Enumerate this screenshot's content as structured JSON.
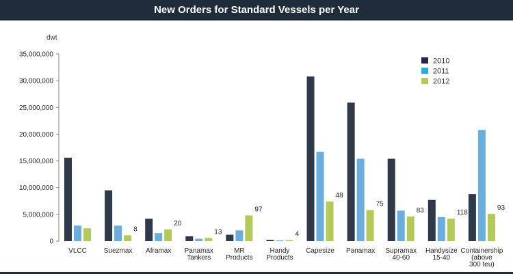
{
  "chart_data": {
    "type": "bar",
    "title": "New Orders for Standard Vessels per Year",
    "ylabel": "dwt",
    "ylim": [
      0,
      35000000
    ],
    "yticks": [
      "35,000,000",
      "30,000,000",
      "25,000,000",
      "20,000,000",
      "15,000,000",
      "10,000,000",
      "5,000,000",
      "0"
    ],
    "ytick_values": [
      35000000,
      30000000,
      25000000,
      20000000,
      15000000,
      10000000,
      5000000,
      0
    ],
    "categories": [
      [
        "VLCC"
      ],
      [
        "Suezmax"
      ],
      [
        "Aframax"
      ],
      [
        "Panamax",
        "Tankers"
      ],
      [
        "MR",
        "Products"
      ],
      [
        "Handy",
        "Products"
      ],
      [
        "Capesize"
      ],
      [
        "Panamax"
      ],
      [
        "Supramax",
        "40-60"
      ],
      [
        "Handysize",
        "15-40"
      ],
      [
        "Containership",
        "(above",
        "300 teu)"
      ]
    ],
    "series": [
      {
        "name": "2010",
        "color": "#2e3a4a",
        "values": [
          15600000,
          9500000,
          4200000,
          900000,
          1200000,
          250000,
          30800000,
          25900000,
          15400000,
          7700000,
          8800000
        ]
      },
      {
        "name": "2011",
        "color": "#6aaee0",
        "values": [
          2900000,
          2900000,
          1500000,
          450000,
          2000000,
          150000,
          16700000,
          15400000,
          5700000,
          4500000,
          20800000
        ]
      },
      {
        "name": "2012",
        "color": "#b3c95a",
        "values": [
          2400000,
          1100000,
          2200000,
          600000,
          4800000,
          200000,
          7400000,
          5800000,
          4600000,
          4200000,
          5100000
        ]
      }
    ],
    "annotations": [
      "",
      "8",
      "20",
      "13",
      "97",
      "4",
      "48",
      "75",
      "83",
      "118",
      "93"
    ],
    "legend": {
      "placement": "top-right",
      "entries": [
        {
          "label": "2010",
          "color": "#2a1f4e"
        },
        {
          "label": "2011",
          "color": "#1bb0e8"
        },
        {
          "label": "2012",
          "color": "#b3c95a"
        }
      ]
    },
    "grid": false
  }
}
